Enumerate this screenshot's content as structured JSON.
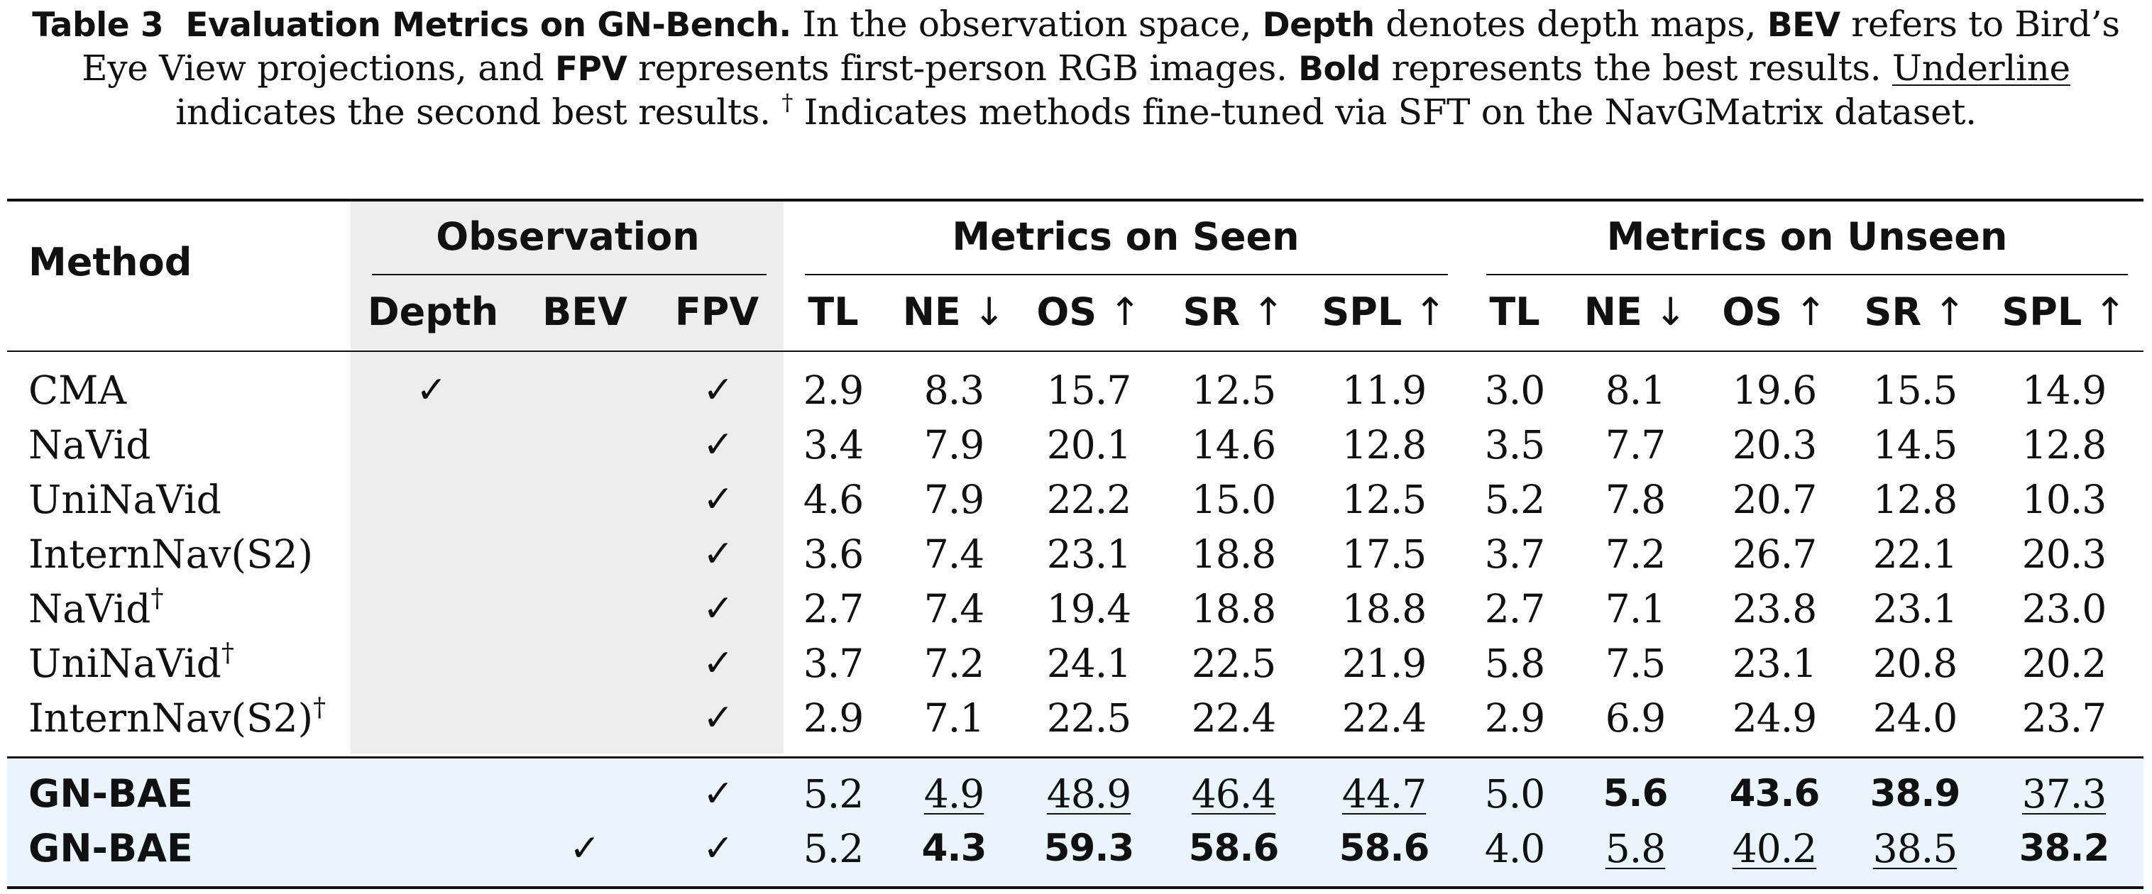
{
  "caption": {
    "label": "Table 3",
    "title": "Evaluation Metrics on GN-Bench.",
    "t1": " In the observation space, ",
    "depth": "Depth",
    "t2": " denotes depth maps, ",
    "bev": "BEV",
    "t3": " refers to Bird’s Eye View projections, and ",
    "fpv": "FPV",
    "t4": " represents first-person RGB images. ",
    "bold": "Bold",
    "t5": " represents the best results. ",
    "underline": "Underline",
    "t6": " indicates the second best results. ",
    "dagger": "†",
    "t7": " Indicates methods fine-tuned via SFT on the NavGMatrix dataset."
  },
  "header": {
    "method": "Method",
    "observation": "Observation",
    "seen": "Metrics on Seen",
    "unseen": "Metrics on Unseen",
    "obs_cols": [
      "Depth",
      "BEV",
      "FPV"
    ],
    "metric_cols": [
      {
        "name": "TL",
        "arrow": ""
      },
      {
        "name": "NE",
        "arrow": "↓"
      },
      {
        "name": "OS",
        "arrow": "↑"
      },
      {
        "name": "SR",
        "arrow": "↑"
      },
      {
        "name": "SPL",
        "arrow": "↑"
      }
    ]
  },
  "check_symbol": "✓",
  "rows": [
    {
      "method": "CMA",
      "dagger": "",
      "depth": true,
      "bev": false,
      "fpv": true,
      "seen": [
        "2.9",
        "8.3",
        "15.7",
        "12.5",
        "11.9"
      ],
      "unseen": [
        "3.0",
        "8.1",
        "19.6",
        "15.5",
        "14.9"
      ]
    },
    {
      "method": "NaVid",
      "dagger": "",
      "depth": false,
      "bev": false,
      "fpv": true,
      "seen": [
        "3.4",
        "7.9",
        "20.1",
        "14.6",
        "12.8"
      ],
      "unseen": [
        "3.5",
        "7.7",
        "20.3",
        "14.5",
        "12.8"
      ]
    },
    {
      "method": "UniNaVid",
      "dagger": "",
      "depth": false,
      "bev": false,
      "fpv": true,
      "seen": [
        "4.6",
        "7.9",
        "22.2",
        "15.0",
        "12.5"
      ],
      "unseen": [
        "5.2",
        "7.8",
        "20.7",
        "12.8",
        "10.3"
      ]
    },
    {
      "method": "InternNav(S2)",
      "dagger": "",
      "depth": false,
      "bev": false,
      "fpv": true,
      "seen": [
        "3.6",
        "7.4",
        "23.1",
        "18.8",
        "17.5"
      ],
      "unseen": [
        "3.7",
        "7.2",
        "26.7",
        "22.1",
        "20.3"
      ]
    },
    {
      "method": "NaVid",
      "dagger": "†",
      "depth": false,
      "bev": false,
      "fpv": true,
      "seen": [
        "2.7",
        "7.4",
        "19.4",
        "18.8",
        "18.8"
      ],
      "unseen": [
        "2.7",
        "7.1",
        "23.8",
        "23.1",
        "23.0"
      ]
    },
    {
      "method": "UniNaVid",
      "dagger": "†",
      "depth": false,
      "bev": false,
      "fpv": true,
      "seen": [
        "3.7",
        "7.2",
        "24.1",
        "22.5",
        "21.9"
      ],
      "unseen": [
        "5.8",
        "7.5",
        "23.1",
        "20.8",
        "20.2"
      ]
    },
    {
      "method": "InternNav(S2)",
      "dagger": "†",
      "depth": false,
      "bev": false,
      "fpv": true,
      "seen": [
        "2.9",
        "7.1",
        "22.5",
        "22.4",
        "22.4"
      ],
      "unseen": [
        "2.9",
        "6.9",
        "24.9",
        "24.0",
        "23.7"
      ]
    },
    {
      "method": "GN-BAE",
      "dagger": "",
      "highlight": true,
      "depth": false,
      "bev": false,
      "fpv": true,
      "seen": [
        "5.2",
        "4.9",
        "48.9",
        "46.4",
        "44.7"
      ],
      "unseen": [
        "5.0",
        "5.6",
        "43.6",
        "38.9",
        "37.3"
      ],
      "seen_style": [
        "",
        "second",
        "second",
        "second",
        "second"
      ],
      "unseen_style": [
        "",
        "best",
        "best",
        "best",
        "second"
      ]
    },
    {
      "method": "GN-BAE",
      "dagger": "",
      "highlight": true,
      "depth": false,
      "bev": true,
      "fpv": true,
      "seen": [
        "5.2",
        "4.3",
        "59.3",
        "58.6",
        "58.6"
      ],
      "unseen": [
        "4.0",
        "5.8",
        "40.2",
        "38.5",
        "38.2"
      ],
      "seen_style": [
        "",
        "best",
        "best",
        "best",
        "best"
      ],
      "unseen_style": [
        "",
        "second",
        "second",
        "second",
        "best"
      ]
    }
  ]
}
